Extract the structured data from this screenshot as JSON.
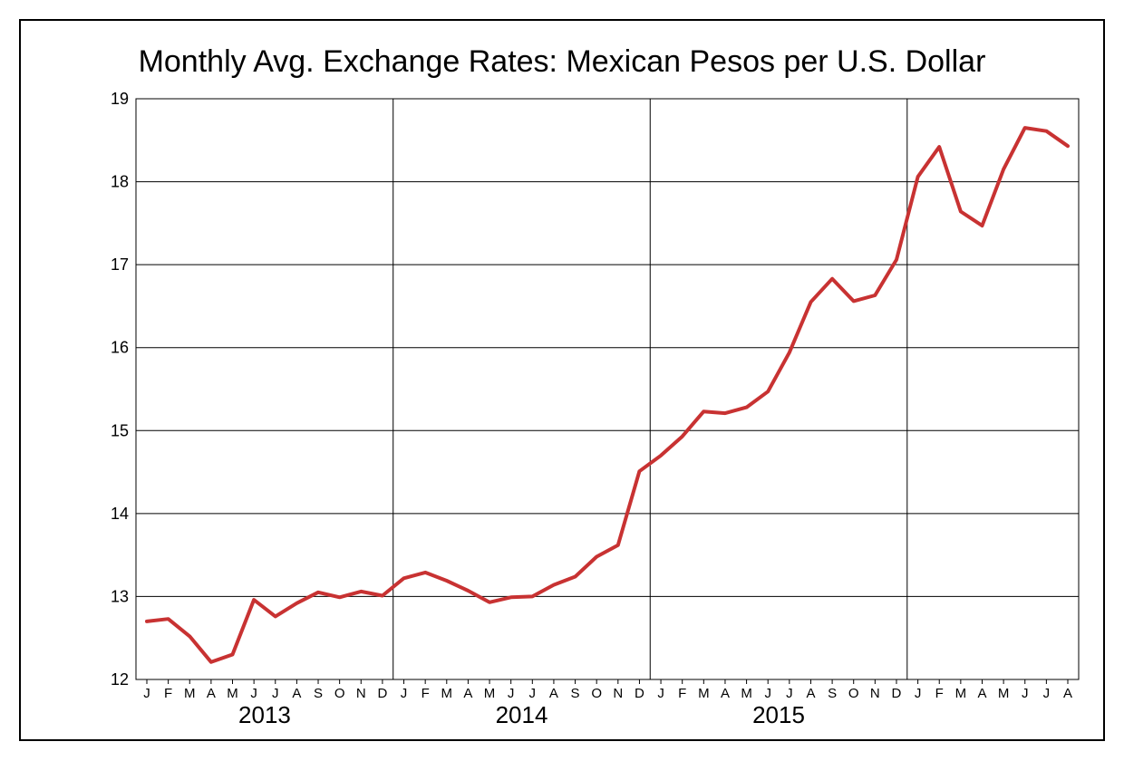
{
  "chart_data": {
    "type": "line",
    "title": "Monthly Avg. Exchange Rates: Mexican Pesos per U.S. Dollar",
    "xlabel": "",
    "ylabel": "",
    "ylim": [
      12,
      19
    ],
    "yticks": [
      12,
      13,
      14,
      15,
      16,
      17,
      18,
      19
    ],
    "grid": true,
    "legend": "none",
    "line_color": "#c83232",
    "month_letters": [
      "J",
      "F",
      "M",
      "A",
      "M",
      "J",
      "J",
      "A",
      "S",
      "O",
      "N",
      "D",
      "J",
      "F",
      "M",
      "A",
      "M",
      "J",
      "J",
      "A",
      "S",
      "O",
      "N",
      "D",
      "J",
      "F",
      "M",
      "A",
      "M",
      "J",
      "J",
      "A",
      "S",
      "O",
      "N",
      "D",
      "J",
      "F",
      "M",
      "A",
      "M",
      "J",
      "J",
      "A"
    ],
    "years": [
      {
        "label": "2013",
        "start_index": 0
      },
      {
        "label": "2014",
        "start_index": 12
      },
      {
        "label": "2015",
        "start_index": 24
      }
    ],
    "series": [
      {
        "values": [
          12.7,
          12.73,
          12.52,
          12.21,
          12.3,
          12.96,
          12.76,
          12.92,
          13.05,
          12.99,
          13.06,
          13.01,
          13.22,
          13.29,
          13.19,
          13.07,
          12.93,
          12.99,
          13.0,
          13.14,
          13.24,
          13.48,
          13.62,
          14.51,
          14.7,
          14.93,
          15.23,
          15.21,
          15.28,
          15.47,
          15.94,
          16.55,
          16.83,
          16.56,
          16.63,
          17.06,
          18.06,
          18.42,
          17.64,
          17.47,
          18.15,
          18.65,
          18.61,
          18.43
        ]
      }
    ]
  }
}
